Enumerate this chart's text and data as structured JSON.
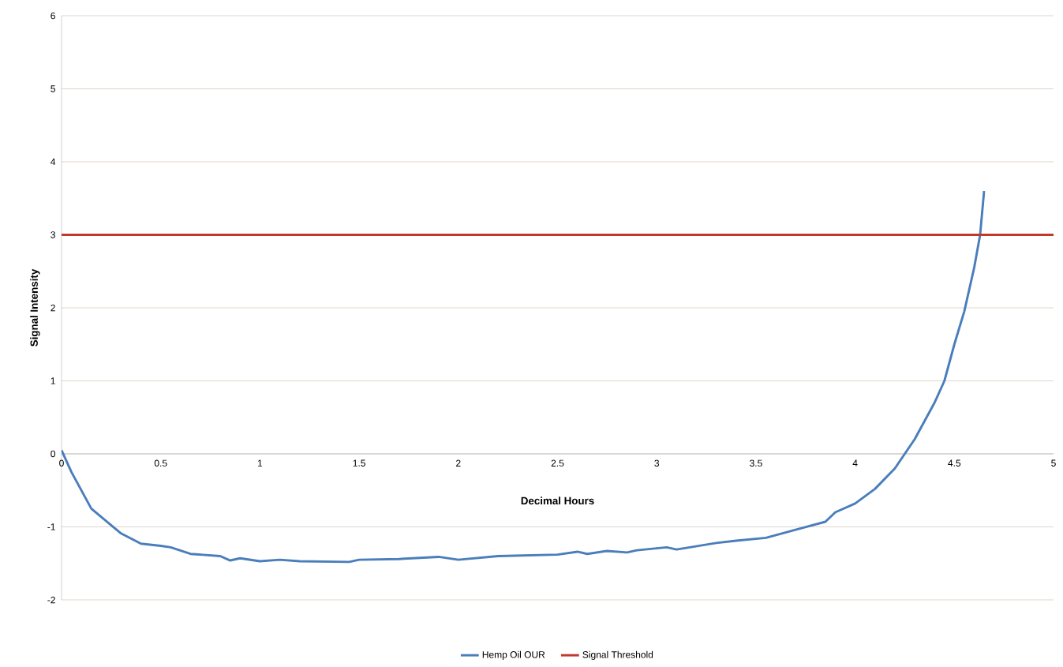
{
  "chart_data": {
    "type": "line",
    "xlabel": "Decimal Hours",
    "ylabel": "Signal Intensity",
    "xlim": [
      0,
      5
    ],
    "xticks": [
      0,
      0.5,
      1,
      1.5,
      2,
      2.5,
      3,
      3.5,
      4,
      4.5,
      5
    ],
    "ylim": [
      -2,
      6
    ],
    "yticks": [
      -2,
      -1,
      0,
      1,
      2,
      3,
      4,
      5,
      6
    ],
    "grid": "y",
    "legend": "bottom",
    "marker": "none",
    "line_style": "solid",
    "series": [
      {
        "name": "Hemp Oil OUR",
        "color": "#4a7ebb",
        "x": [
          0,
          0.05,
          0.15,
          0.3,
          0.4,
          0.5,
          0.55,
          0.65,
          0.8,
          0.85,
          0.9,
          1.0,
          1.1,
          1.2,
          1.45,
          1.5,
          1.7,
          1.9,
          2.0,
          2.2,
          2.5,
          2.6,
          2.65,
          2.75,
          2.85,
          2.9,
          3.05,
          3.1,
          3.3,
          3.4,
          3.55,
          3.7,
          3.85,
          3.9,
          4.0,
          4.1,
          4.2,
          4.3,
          4.4,
          4.45,
          4.5,
          4.55,
          4.6,
          4.63,
          4.65
        ],
        "values": [
          0.05,
          -0.25,
          -0.75,
          -1.09,
          -1.23,
          -1.26,
          -1.28,
          -1.37,
          -1.4,
          -1.46,
          -1.43,
          -1.47,
          -1.45,
          -1.47,
          -1.48,
          -1.45,
          -1.44,
          -1.41,
          -1.45,
          -1.4,
          -1.38,
          -1.34,
          -1.37,
          -1.33,
          -1.35,
          -1.32,
          -1.28,
          -1.31,
          -1.22,
          -1.19,
          -1.15,
          -1.04,
          -0.93,
          -0.8,
          -0.68,
          -0.48,
          -0.2,
          0.2,
          0.7,
          1.0,
          1.5,
          1.95,
          2.55,
          3.0,
          3.6
        ]
      },
      {
        "name": "Signal Threshold",
        "color": "#c0392b",
        "x": [
          0,
          5
        ],
        "values": [
          3,
          3
        ]
      }
    ]
  }
}
